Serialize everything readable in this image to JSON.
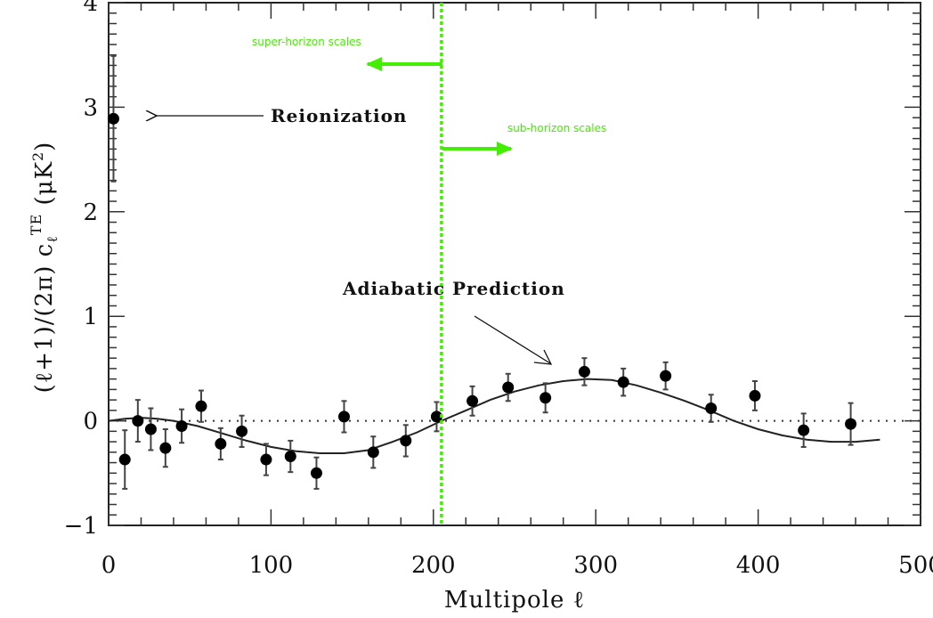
{
  "chart_data": {
    "type": "scatter",
    "title": "",
    "xlabel": "Multipole ℓ",
    "ylabel": {
      "prefix": "(ℓ+1)/(2π) c",
      "sub": "ℓ",
      "sup": "TE",
      "suffix": " (μK",
      "unit_sup": "2",
      "close": ")"
    },
    "xlim": [
      0,
      500
    ],
    "ylim": [
      -1,
      4
    ],
    "x_ticks": [
      "0",
      "100",
      "200",
      "300",
      "400",
      "500"
    ],
    "y_ticks": [
      "−1",
      "0",
      "1",
      "2",
      "3",
      "4"
    ],
    "grid": false,
    "zero_line": "dotted",
    "points": [
      {
        "l": 3,
        "v": 2.89,
        "err": 0.6
      },
      {
        "l": 10,
        "v": -0.37,
        "err": 0.28
      },
      {
        "l": 18,
        "v": 0.0,
        "err": 0.2
      },
      {
        "l": 26,
        "v": -0.08,
        "err": 0.2
      },
      {
        "l": 35,
        "v": -0.26,
        "err": 0.18
      },
      {
        "l": 45,
        "v": -0.05,
        "err": 0.16
      },
      {
        "l": 57,
        "v": 0.14,
        "err": 0.15
      },
      {
        "l": 69,
        "v": -0.22,
        "err": 0.15
      },
      {
        "l": 82,
        "v": -0.1,
        "err": 0.15
      },
      {
        "l": 97,
        "v": -0.37,
        "err": 0.15
      },
      {
        "l": 112,
        "v": -0.34,
        "err": 0.15
      },
      {
        "l": 128,
        "v": -0.5,
        "err": 0.15
      },
      {
        "l": 145,
        "v": 0.04,
        "err": 0.15
      },
      {
        "l": 163,
        "v": -0.3,
        "err": 0.15
      },
      {
        "l": 183,
        "v": -0.19,
        "err": 0.15
      },
      {
        "l": 202,
        "v": 0.04,
        "err": 0.14
      },
      {
        "l": 224,
        "v": 0.19,
        "err": 0.14
      },
      {
        "l": 246,
        "v": 0.32,
        "err": 0.13
      },
      {
        "l": 269,
        "v": 0.22,
        "err": 0.14
      },
      {
        "l": 293,
        "v": 0.47,
        "err": 0.13
      },
      {
        "l": 317,
        "v": 0.37,
        "err": 0.13
      },
      {
        "l": 343,
        "v": 0.43,
        "err": 0.13
      },
      {
        "l": 371,
        "v": 0.12,
        "err": 0.13
      },
      {
        "l": 398,
        "v": 0.24,
        "err": 0.14
      },
      {
        "l": 428,
        "v": -0.09,
        "err": 0.16
      },
      {
        "l": 457,
        "v": -0.03,
        "err": 0.2
      }
    ],
    "prediction_curve": [
      [
        0,
        0
      ],
      [
        10,
        0.02
      ],
      [
        20,
        0.03
      ],
      [
        30,
        0.02
      ],
      [
        40,
        0.0
      ],
      [
        55,
        -0.05
      ],
      [
        70,
        -0.12
      ],
      [
        85,
        -0.19
      ],
      [
        100,
        -0.25
      ],
      [
        115,
        -0.29
      ],
      [
        130,
        -0.31
      ],
      [
        145,
        -0.31
      ],
      [
        160,
        -0.28
      ],
      [
        175,
        -0.2
      ],
      [
        190,
        -0.11
      ],
      [
        205,
        0.0
      ],
      [
        220,
        0.1
      ],
      [
        235,
        0.2
      ],
      [
        250,
        0.28
      ],
      [
        265,
        0.34
      ],
      [
        280,
        0.38
      ],
      [
        295,
        0.4
      ],
      [
        310,
        0.39
      ],
      [
        325,
        0.34
      ],
      [
        340,
        0.27
      ],
      [
        355,
        0.19
      ],
      [
        370,
        0.1
      ],
      [
        385,
        0.0
      ],
      [
        400,
        -0.08
      ],
      [
        415,
        -0.14
      ],
      [
        430,
        -0.18
      ],
      [
        445,
        -0.2
      ],
      [
        460,
        -0.2
      ],
      [
        475,
        -0.18
      ]
    ],
    "horizon_line_l": 205,
    "annotations": {
      "reionization": "Reionization",
      "adiabatic": "Adiabatic Prediction",
      "super_horizon": "super-horizon scales",
      "sub_horizon": "sub-horizon scales"
    },
    "colors": {
      "data": "#000000",
      "horizon": "#44ee00",
      "frame": "#222222"
    }
  }
}
